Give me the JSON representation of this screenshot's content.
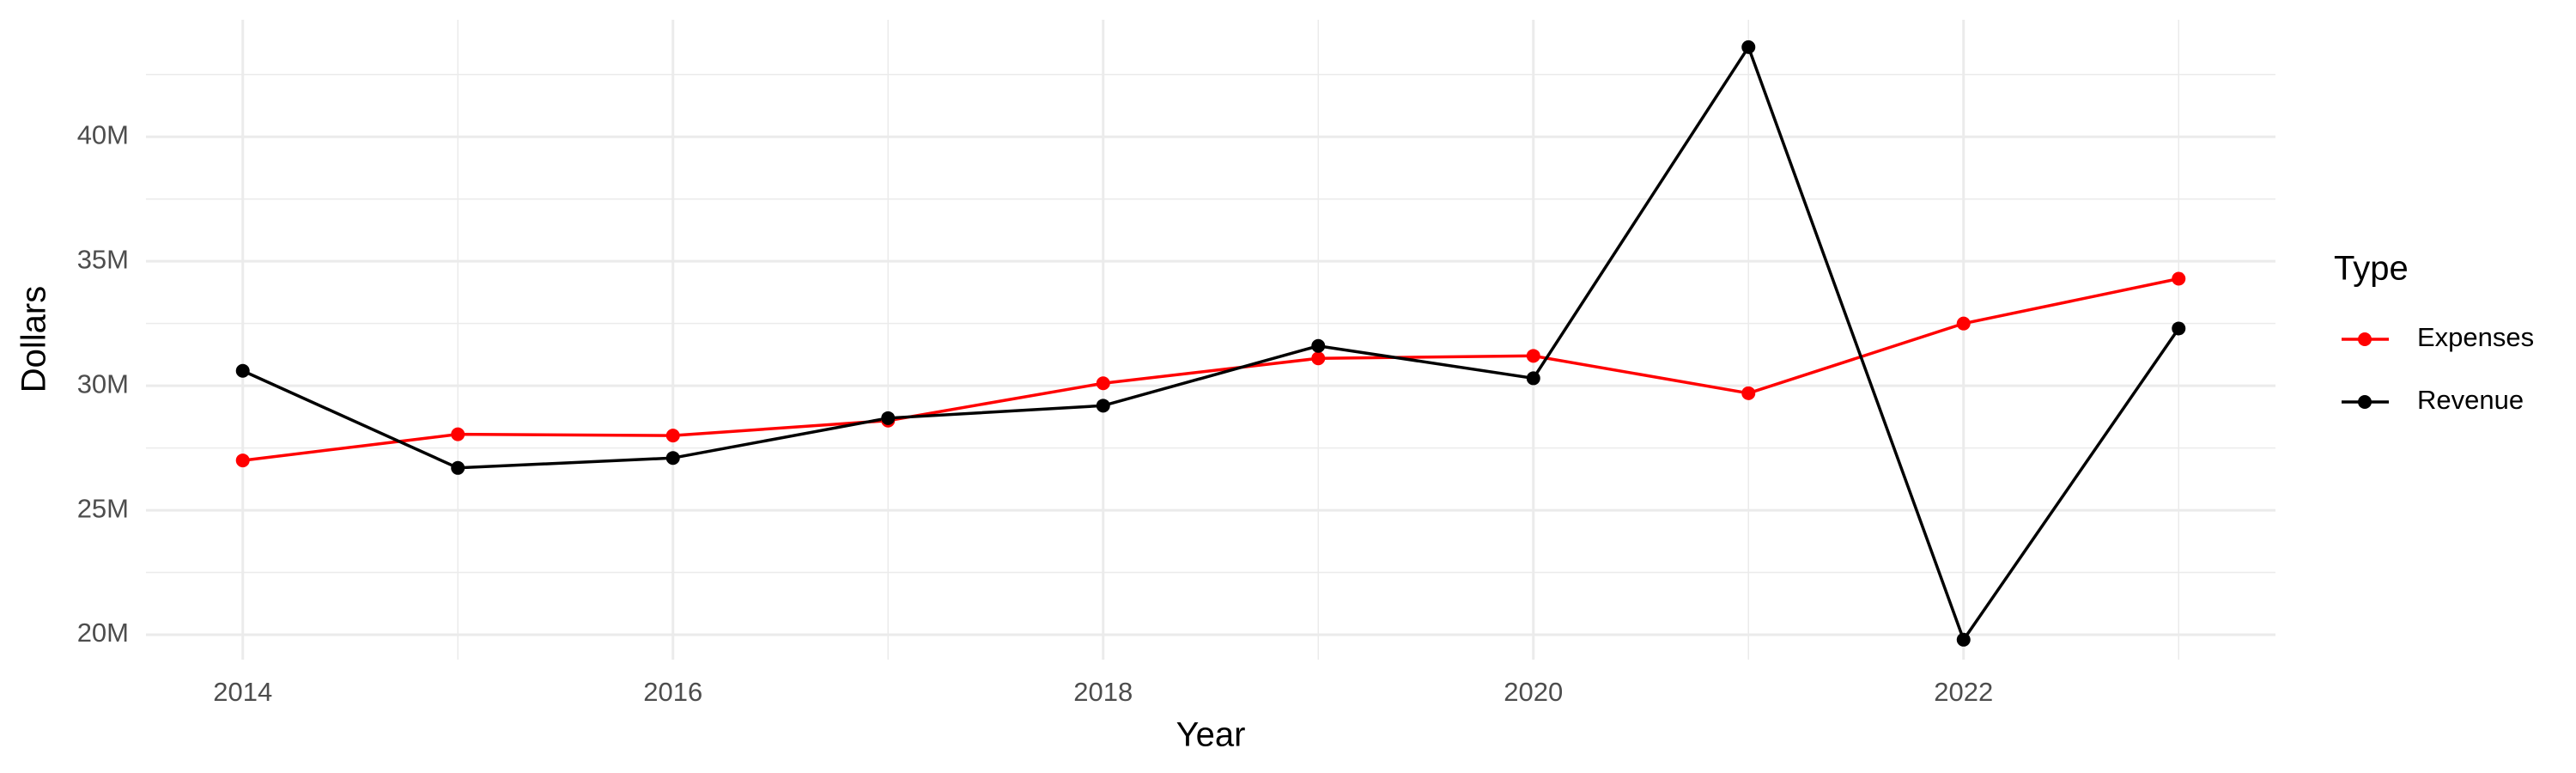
{
  "chart_data": {
    "type": "line",
    "x_label": "Year",
    "y_label": "Dollars",
    "legend_title": "Type",
    "x": [
      2014,
      2015,
      2016,
      2017,
      2018,
      2019,
      2020,
      2021,
      2022,
      2023
    ],
    "series": [
      {
        "name": "Expenses",
        "color": "#ff0000",
        "values": [
          27000000,
          28050000,
          28000000,
          28600000,
          30100000,
          31100000,
          31200000,
          29700000,
          32500000,
          34300000
        ]
      },
      {
        "name": "Revenue",
        "color": "#000000",
        "values": [
          30600000,
          26700000,
          27100000,
          28700000,
          29200000,
          31600000,
          30300000,
          43600000,
          19800000,
          32300000
        ]
      }
    ],
    "xlim": [
      2013.55,
      2023.45
    ],
    "xticks": [
      2014,
      2016,
      2018,
      2020,
      2022
    ],
    "ylim": [
      19000000,
      44700000
    ],
    "yticks": [
      {
        "value": 20000000,
        "label": "20M"
      },
      {
        "value": 25000000,
        "label": "25M"
      },
      {
        "value": 30000000,
        "label": "30M"
      },
      {
        "value": 35000000,
        "label": "35M"
      },
      {
        "value": 40000000,
        "label": "40M"
      }
    ],
    "grid": true,
    "legend": "right"
  }
}
